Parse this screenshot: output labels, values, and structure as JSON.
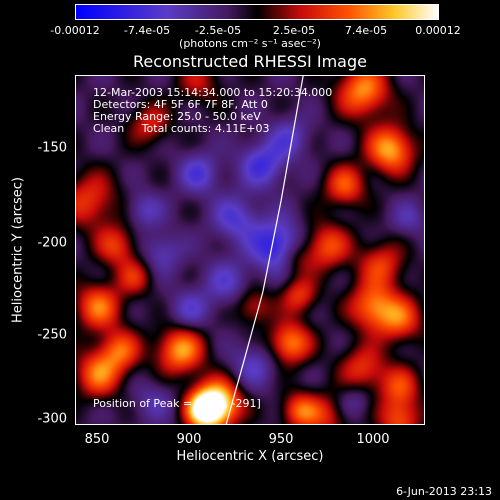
{
  "chart_data": {
    "type": "heatmap",
    "title": "Reconstructed RHESSI Image",
    "xlabel": "Heliocentric X (arcsec)",
    "ylabel": "Heliocentric Y (arcsec)",
    "xlim": [
      838,
      1028
    ],
    "ylim": [
      -302,
      -112
    ],
    "x_ticks": [
      "850",
      "900",
      "950",
      "1000"
    ],
    "x_tick_values": [
      850,
      900,
      950,
      1000
    ],
    "y_ticks": [
      "-150",
      "-200",
      "-250",
      "-300"
    ],
    "y_tick_values": [
      -150,
      -200,
      -250,
      -300
    ],
    "colorbar": {
      "ticks": [
        "-0.00012",
        "-7.4e-05",
        "-2.5e-05",
        "2.5e-05",
        "7.4e-05",
        "0.00012"
      ],
      "tick_values": [
        -0.00012,
        -7.4e-05,
        -2.5e-05,
        2.5e-05,
        7.4e-05,
        0.00012
      ],
      "range": [
        -0.00012,
        0.00012
      ],
      "units": "(photons cm⁻² s⁻¹ asec⁻²)"
    },
    "annotations": [
      "12-Mar-2003 15:14:34.000 to 15:20:34.000",
      "Detectors: 4F 5F 6F 7F 8F, Att 0",
      "Energy Range: 25.0 - 50.0 keV",
      "Clean     Total counts: 4.11E+03"
    ],
    "peak_label": "Position of Peak = [ 915, -291]",
    "peak": {
      "x": 915,
      "y": -291
    },
    "limb_curve": [
      [
        920,
        -302
      ],
      [
        929,
        -270
      ],
      [
        940,
        -230
      ],
      [
        950,
        -180
      ],
      [
        962,
        -112
      ]
    ],
    "blobs": [
      {
        "x": 915,
        "y": -291,
        "v": 0.00013,
        "s": 9
      },
      {
        "x": 908,
        "y": -295,
        "v": 0.00011,
        "s": 7
      },
      {
        "x": 850,
        "y": -275,
        "v": 8e-05,
        "s": 9
      },
      {
        "x": 862,
        "y": -262,
        "v": 7e-05,
        "s": 8
      },
      {
        "x": 895,
        "y": -262,
        "v": 9.5e-05,
        "s": 9
      },
      {
        "x": 850,
        "y": -238,
        "v": 8e-05,
        "s": 9
      },
      {
        "x": 845,
        "y": -180,
        "v": 6e-05,
        "s": 11
      },
      {
        "x": 860,
        "y": -205,
        "v": 6e-05,
        "s": 8
      },
      {
        "x": 905,
        "y": -115,
        "v": 4e-05,
        "s": 9
      },
      {
        "x": 995,
        "y": -120,
        "v": 9e-05,
        "s": 10
      },
      {
        "x": 1010,
        "y": -152,
        "v": 0.0001,
        "s": 9
      },
      {
        "x": 985,
        "y": -172,
        "v": 7e-05,
        "s": 8
      },
      {
        "x": 975,
        "y": -205,
        "v": 7e-05,
        "s": 9
      },
      {
        "x": 1005,
        "y": -215,
        "v": 6e-05,
        "s": 9
      },
      {
        "x": 1000,
        "y": -238,
        "v": 8e-05,
        "s": 9
      },
      {
        "x": 1015,
        "y": -245,
        "v": 7e-05,
        "s": 9
      },
      {
        "x": 955,
        "y": -258,
        "v": 9e-05,
        "s": 8
      },
      {
        "x": 960,
        "y": -232,
        "v": 6e-05,
        "s": 7
      },
      {
        "x": 935,
        "y": -238,
        "v": 5e-05,
        "s": 7
      },
      {
        "x": 958,
        "y": -212,
        "v": 4e-05,
        "s": 7
      },
      {
        "x": 995,
        "y": -272,
        "v": 6e-05,
        "s": 9
      },
      {
        "x": 1015,
        "y": -282,
        "v": 6e-05,
        "s": 8
      },
      {
        "x": 975,
        "y": -298,
        "v": 5e-05,
        "s": 9
      },
      {
        "x": 960,
        "y": -295,
        "v": 7e-05,
        "s": 7
      },
      {
        "x": 1015,
        "y": -300,
        "v": 7e-05,
        "s": 8
      },
      {
        "x": 878,
        "y": -138,
        "v": 5e-05,
        "s": 8
      },
      {
        "x": 870,
        "y": -222,
        "v": 5e-05,
        "s": 7
      },
      {
        "x": 940,
        "y": -160,
        "v": -6e-05,
        "s": 9
      },
      {
        "x": 925,
        "y": -190,
        "v": -5e-05,
        "s": 9
      },
      {
        "x": 948,
        "y": -205,
        "v": -8e-05,
        "s": 10
      },
      {
        "x": 905,
        "y": -165,
        "v": -5e-05,
        "s": 8
      },
      {
        "x": 885,
        "y": -208,
        "v": -4e-05,
        "s": 8
      },
      {
        "x": 920,
        "y": -225,
        "v": -4e-05,
        "s": 9
      },
      {
        "x": 900,
        "y": -240,
        "v": -4e-05,
        "s": 8
      },
      {
        "x": 955,
        "y": -145,
        "v": -4e-05,
        "s": 8
      },
      {
        "x": 935,
        "y": -270,
        "v": -4e-05,
        "s": 9
      },
      {
        "x": 875,
        "y": -185,
        "v": -4e-05,
        "s": 7
      },
      {
        "x": 1020,
        "y": -190,
        "v": -3e-05,
        "s": 7
      },
      {
        "x": 880,
        "y": -290,
        "v": -3e-05,
        "s": 8
      },
      {
        "x": 990,
        "y": -290,
        "v": -3e-05,
        "s": 7
      }
    ]
  },
  "footer": {
    "timestamp": "6-Jun-2013 23:13"
  }
}
